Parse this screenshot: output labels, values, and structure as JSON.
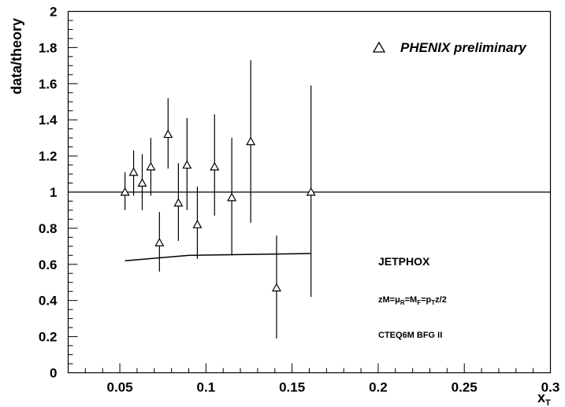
{
  "chart_data": {
    "type": "scatter",
    "xlabel": "x_T",
    "ylabel": "data/theory",
    "xlim": [
      0.02,
      0.3
    ],
    "ylim": [
      0,
      2
    ],
    "x_ticks": [
      "0.05",
      "0.1",
      "0.15",
      "0.2",
      "0.25",
      "0.3"
    ],
    "y_ticks": [
      "0",
      "0.2",
      "0.4",
      "0.6",
      "0.8",
      "1",
      "1.2",
      "1.4",
      "1.6",
      "1.8",
      "2"
    ],
    "reference_line": 1,
    "grid": false,
    "legend_position": "top-right",
    "series": [
      {
        "name": "PHENIX preliminary",
        "marker": "open-triangle",
        "points": [
          {
            "x": 0.053,
            "y": 1.0,
            "ylo": 0.9,
            "yhi": 1.11
          },
          {
            "x": 0.058,
            "y": 1.11,
            "ylo": 0.98,
            "yhi": 1.23
          },
          {
            "x": 0.063,
            "y": 1.05,
            "ylo": 0.9,
            "yhi": 1.21
          },
          {
            "x": 0.068,
            "y": 1.14,
            "ylo": 0.98,
            "yhi": 1.3
          },
          {
            "x": 0.073,
            "y": 0.72,
            "ylo": 0.56,
            "yhi": 0.89
          },
          {
            "x": 0.078,
            "y": 1.32,
            "ylo": 1.13,
            "yhi": 1.52
          },
          {
            "x": 0.084,
            "y": 0.94,
            "ylo": 0.73,
            "yhi": 1.16
          },
          {
            "x": 0.089,
            "y": 1.15,
            "ylo": 0.9,
            "yhi": 1.41
          },
          {
            "x": 0.095,
            "y": 0.82,
            "ylo": 0.63,
            "yhi": 1.03
          },
          {
            "x": 0.105,
            "y": 1.14,
            "ylo": 0.87,
            "yhi": 1.43
          },
          {
            "x": 0.115,
            "y": 0.97,
            "ylo": 0.65,
            "yhi": 1.3
          },
          {
            "x": 0.126,
            "y": 1.28,
            "ylo": 0.83,
            "yhi": 1.73
          },
          {
            "x": 0.141,
            "y": 0.47,
            "ylo": 0.19,
            "yhi": 0.76
          },
          {
            "x": 0.161,
            "y": 1.0,
            "ylo": 0.42,
            "yhi": 1.59
          }
        ]
      },
      {
        "name": "JETPHOX",
        "type": "line",
        "x": [
          0.053,
          0.09,
          0.161
        ],
        "y": [
          0.62,
          0.65,
          0.66
        ]
      }
    ],
    "annotations": [
      "JETPHOX",
      "zM=μ_R=M_F=p_T z/2",
      "CTEQ6M BFG II"
    ]
  }
}
